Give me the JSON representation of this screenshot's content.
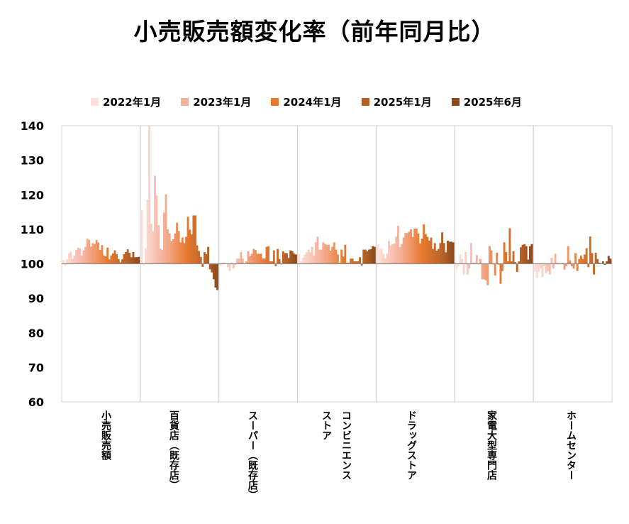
{
  "chart_data": {
    "type": "bar",
    "title": "小売販売額変化率（前年同月比）",
    "xlabel": "",
    "ylabel": "",
    "ylim": [
      60,
      140
    ],
    "yticks": [
      "140",
      "130",
      "120",
      "110",
      "100",
      "90",
      "80",
      "70",
      "60"
    ],
    "baseline": 100,
    "grid": "vertical category separators",
    "legend_position": "top",
    "legend": [
      {
        "label": "2022年1月",
        "color": "#FBE1DA"
      },
      {
        "label": "2023年1月",
        "color": "#F5B09A"
      },
      {
        "label": "2024年1月",
        "color": "#E87A30"
      },
      {
        "label": "2025年1月",
        "color": "#B35F24"
      },
      {
        "label": "2025年6月",
        "color": "#8E4A1C"
      }
    ],
    "period": "2022年1月 – 2025年6月 (monthly)",
    "categories": [
      {
        "label": "小売販売額",
        "values": [
          101.1,
          99.4,
          101.3,
          103,
          103.5,
          101.4,
          102.4,
          104,
          104.7,
          104.4,
          102.4,
          103.9,
          104.9,
          107.3,
          106.9,
          105,
          106,
          105.7,
          106.9,
          106.2,
          104,
          105.4,
          102.4,
          102.2,
          104.7,
          101.3,
          102.4,
          103,
          103.9,
          102.8,
          101.4,
          100.4,
          101.3,
          102.8,
          103.4,
          104.2,
          103.2,
          101.9,
          103.4,
          101.9,
          101.9,
          102
        ]
      },
      {
        "label": "百貨店（既存店）",
        "values": [
          115.5,
          99.6,
          104.5,
          118.6,
          140,
          111.6,
          109.4,
          125.5,
          119.8,
          111.2,
          104.4,
          104,
          114.8,
          120.1,
          110,
          108.8,
          106.6,
          107.1,
          108.8,
          111.9,
          109.5,
          106.2,
          107.6,
          106,
          107.8,
          113.6,
          109.9,
          108.5,
          114,
          114,
          105.3,
          103.7,
          102,
          99.1,
          103.4,
          102.8,
          104.9,
          98.4,
          97.5,
          95.5,
          93.1,
          92.4
        ]
      },
      {
        "label": "スーパー（既存店）",
        "values": [
          99.3,
          100.3,
          100.3,
          99.9,
          99,
          97.9,
          100.3,
          98.6,
          99.7,
          101.5,
          101.5,
          103.4,
          101.5,
          100,
          100.7,
          103.6,
          102.2,
          102.9,
          104.3,
          104,
          102.9,
          102.9,
          102.9,
          101.5,
          101.5,
          104.9,
          105.1,
          100.7,
          100.7,
          103.9,
          99.3,
          104.3,
          101.4,
          99.8,
          103.6,
          103.1,
          103.1,
          101.7,
          103.9,
          103.6,
          102.9,
          102.7
        ]
      },
      {
        "label": "コンビニエンス\nストア",
        "values": [
          102.9,
          100.7,
          101.7,
          102.7,
          103.4,
          104.1,
          103.4,
          104.9,
          102.4,
          106.3,
          107.9,
          104.1,
          104.1,
          106.2,
          105.8,
          105.5,
          105.5,
          103.8,
          104.9,
          106.2,
          104.1,
          102.7,
          100.3,
          104.1,
          102.1,
          105.5,
          100.3,
          100.3,
          101.5,
          101.5,
          100.7,
          100.7,
          100.7,
          101.9,
          99.5,
          104.1,
          104.1,
          103.6,
          104.1,
          104.2,
          105.1,
          104.9
        ]
      },
      {
        "label": "ドラッグストア",
        "values": [
          105.7,
          104.3,
          104.3,
          102.9,
          101.6,
          102.9,
          106.6,
          105.3,
          105.7,
          105.9,
          107.8,
          111,
          104.8,
          105.7,
          107.6,
          108.9,
          108.9,
          109.3,
          110,
          107.8,
          110.2,
          110.2,
          108.8,
          105.9,
          107.3,
          111.4,
          108.6,
          107.8,
          106.7,
          107.6,
          104.3,
          106,
          103.8,
          104.3,
          106,
          109.1,
          106,
          103.3,
          106.7,
          106.4,
          106.4,
          106.2
        ]
      },
      {
        "label": "家電大型専門店",
        "values": [
          98.6,
          99.3,
          102.7,
          101.4,
          96.9,
          103.4,
          96.9,
          98.6,
          106,
          100.3,
          100.3,
          102.5,
          99.8,
          101.4,
          95.5,
          95.5,
          95.2,
          93.8,
          105.1,
          103.9,
          99.8,
          96.6,
          103.2,
          99.7,
          94.2,
          97.9,
          106.2,
          103.4,
          100.7,
          110.3,
          100.7,
          103.6,
          100.5,
          97.6,
          100.7,
          104.8,
          105.5,
          105.7,
          105.1,
          101.2,
          105.1,
          105.7
        ]
      },
      {
        "label": "ホームセンター",
        "values": [
          97.6,
          95.9,
          97.6,
          98.6,
          96.2,
          99.3,
          97.3,
          97.9,
          96.9,
          101.7,
          98.6,
          102.9,
          100.3,
          100.2,
          100.2,
          100.3,
          98.3,
          99.3,
          105.1,
          101,
          99.3,
          98.6,
          103.1,
          97.9,
          101.4,
          102.4,
          101.4,
          102.7,
          104.5,
          99,
          107.9,
          103.1,
          96.9,
          103.2,
          101.4,
          100.3,
          100,
          100.7,
          99.7,
          100.7,
          102.3,
          101.5
        ]
      }
    ]
  }
}
